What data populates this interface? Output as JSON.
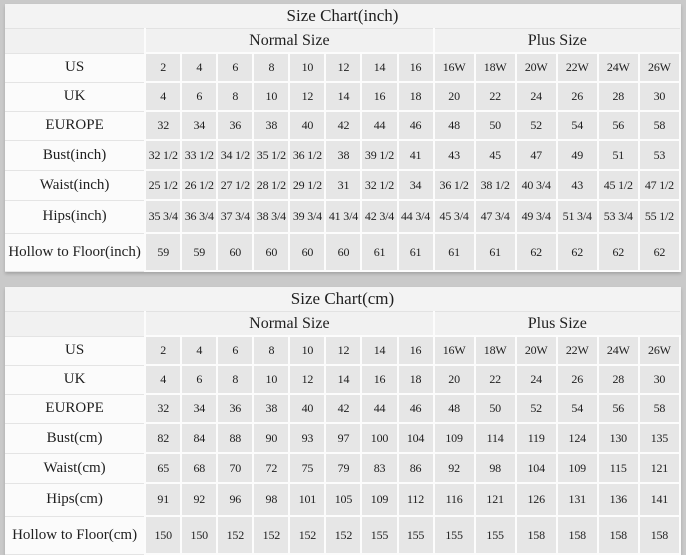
{
  "page": {
    "background_color": "#c9c9c9",
    "header_bg_color": "#f2f2f2",
    "label_cell_bg_color": "#fbfbfb",
    "data_cell_bg_color": "#e6e6e6",
    "cell_border_color": "#fcfcfc",
    "text_color": "#1f1f1f"
  },
  "chart_data": [
    {
      "type": "table",
      "title": "Size Chart(inch)",
      "column_groups": [
        {
          "label": "Normal Size",
          "span": 8
        },
        {
          "label": "Plus Size",
          "span": 6
        }
      ],
      "rows": [
        {
          "label": "US",
          "values": [
            "2",
            "4",
            "6",
            "8",
            "10",
            "12",
            "14",
            "16",
            "16W",
            "18W",
            "20W",
            "22W",
            "24W",
            "26W"
          ]
        },
        {
          "label": "UK",
          "values": [
            "4",
            "6",
            "8",
            "10",
            "12",
            "14",
            "16",
            "18",
            "20",
            "22",
            "24",
            "26",
            "28",
            "30"
          ]
        },
        {
          "label": "EUROPE",
          "values": [
            "32",
            "34",
            "36",
            "38",
            "40",
            "42",
            "44",
            "46",
            "48",
            "50",
            "52",
            "54",
            "56",
            "58"
          ]
        },
        {
          "label": "Bust(inch)",
          "values": [
            "32 1/2",
            "33 1/2",
            "34 1/2",
            "35 1/2",
            "36 1/2",
            "38",
            "39 1/2",
            "41",
            "43",
            "45",
            "47",
            "49",
            "51",
            "53"
          ]
        },
        {
          "label": "Waist(inch)",
          "values": [
            "25 1/2",
            "26 1/2",
            "27 1/2",
            "28 1/2",
            "29 1/2",
            "31",
            "32 1/2",
            "34",
            "36 1/2",
            "38 1/2",
            "40 3/4",
            "43",
            "45 1/2",
            "47 1/2"
          ]
        },
        {
          "label": "Hips(inch)",
          "values": [
            "35 3/4",
            "36 3/4",
            "37 3/4",
            "38 3/4",
            "39 3/4",
            "41 3/4",
            "42 3/4",
            "44 3/4",
            "45 3/4",
            "47 3/4",
            "49 3/4",
            "51 3/4",
            "53 3/4",
            "55 1/2"
          ]
        },
        {
          "label": "Hollow to Floor(inch)",
          "values": [
            "59",
            "59",
            "60",
            "60",
            "60",
            "60",
            "61",
            "61",
            "61",
            "61",
            "62",
            "62",
            "62",
            "62"
          ]
        }
      ]
    },
    {
      "type": "table",
      "title": "Size Chart(cm)",
      "column_groups": [
        {
          "label": "Normal Size",
          "span": 8
        },
        {
          "label": "Plus Size",
          "span": 6
        }
      ],
      "rows": [
        {
          "label": "US",
          "values": [
            "2",
            "4",
            "6",
            "8",
            "10",
            "12",
            "14",
            "16",
            "16W",
            "18W",
            "20W",
            "22W",
            "24W",
            "26W"
          ]
        },
        {
          "label": "UK",
          "values": [
            "4",
            "6",
            "8",
            "10",
            "12",
            "14",
            "16",
            "18",
            "20",
            "22",
            "24",
            "26",
            "28",
            "30"
          ]
        },
        {
          "label": "EUROPE",
          "values": [
            "32",
            "34",
            "36",
            "38",
            "40",
            "42",
            "44",
            "46",
            "48",
            "50",
            "52",
            "54",
            "56",
            "58"
          ]
        },
        {
          "label": "Bust(cm)",
          "values": [
            "82",
            "84",
            "88",
            "90",
            "93",
            "97",
            "100",
            "104",
            "109",
            "114",
            "119",
            "124",
            "130",
            "135"
          ]
        },
        {
          "label": "Waist(cm)",
          "values": [
            "65",
            "68",
            "70",
            "72",
            "75",
            "79",
            "83",
            "86",
            "92",
            "98",
            "104",
            "109",
            "115",
            "121"
          ]
        },
        {
          "label": "Hips(cm)",
          "values": [
            "91",
            "92",
            "96",
            "98",
            "101",
            "105",
            "109",
            "112",
            "116",
            "121",
            "126",
            "131",
            "136",
            "141"
          ]
        },
        {
          "label": "Hollow to Floor(cm)",
          "values": [
            "150",
            "150",
            "152",
            "152",
            "152",
            "152",
            "155",
            "155",
            "155",
            "155",
            "158",
            "158",
            "158",
            "158"
          ]
        }
      ]
    }
  ]
}
